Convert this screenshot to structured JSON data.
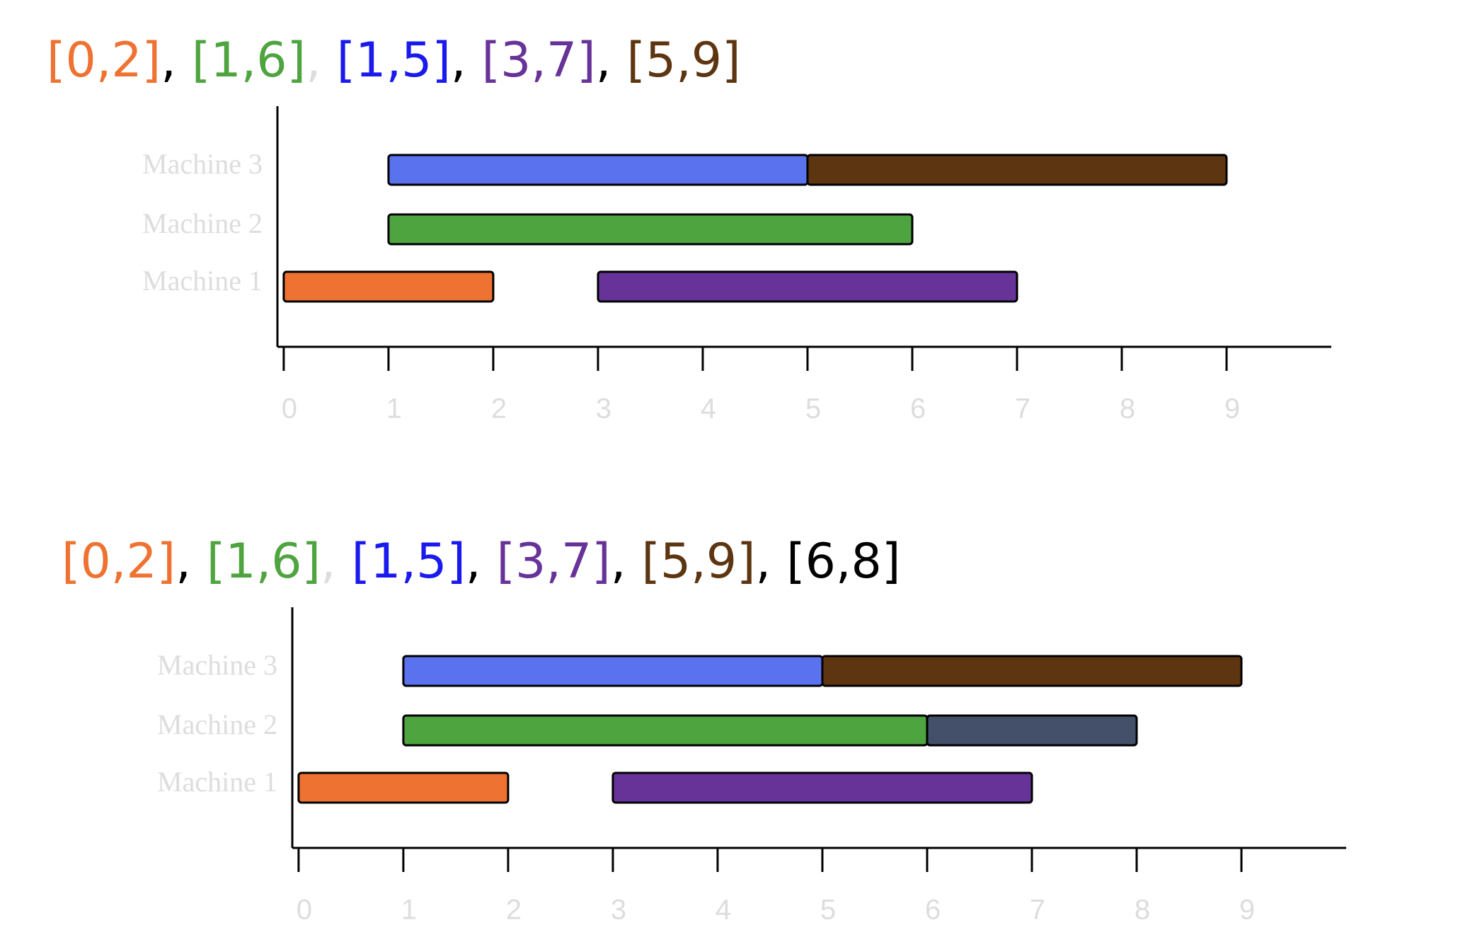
{
  "chart_data": [
    {
      "type": "gantt",
      "title_parts": [
        {
          "text": "[0,2]",
          "color": "#ee7231",
          "comma_color": "#000000"
        },
        {
          "text": "[1,6]",
          "color": "#4ea43f",
          "comma_color": "#dddddd"
        },
        {
          "text": "[1,5]",
          "color": "#1a1aee",
          "comma_color": "#000000"
        },
        {
          "text": "[3,7]",
          "color": "#673399",
          "comma_color": "#000000"
        },
        {
          "text": "[5,9]",
          "color": "#5e3511"
        }
      ],
      "separator": ",",
      "categories": [
        "Machine 1",
        "Machine 2",
        "Machine 3"
      ],
      "tasks": [
        [
          {
            "start": 0,
            "end": 2,
            "color": "#ee7231"
          },
          {
            "start": 3,
            "end": 7,
            "color": "#673399"
          }
        ],
        [
          {
            "start": 1,
            "end": 6,
            "color": "#4ea43f"
          }
        ],
        [
          {
            "start": 1,
            "end": 5,
            "color": "#5b72ef"
          },
          {
            "start": 5,
            "end": 9,
            "color": "#5e3511"
          }
        ]
      ],
      "xlim": [
        -0.06,
        10
      ],
      "xticks": [
        0,
        1,
        2,
        3,
        4,
        5,
        6,
        7,
        8,
        9
      ]
    },
    {
      "type": "gantt",
      "title_parts": [
        {
          "text": "[0,2]",
          "color": "#ee7231",
          "comma_color": "#000000"
        },
        {
          "text": "[1,6]",
          "color": "#4ea43f",
          "comma_color": "#dddddd"
        },
        {
          "text": "[1,5]",
          "color": "#1a1aee",
          "comma_color": "#000000"
        },
        {
          "text": "[3,7]",
          "color": "#673399",
          "comma_color": "#000000"
        },
        {
          "text": "[5,9]",
          "color": "#5e3511",
          "comma_color": "#000000"
        },
        {
          "text": "[6,8]",
          "color": "#000000"
        }
      ],
      "separator": ",",
      "categories": [
        "Machine 1",
        "Machine 2",
        "Machine 3"
      ],
      "tasks": [
        [
          {
            "start": 0,
            "end": 2,
            "color": "#ee7231"
          },
          {
            "start": 3,
            "end": 7,
            "color": "#673399"
          }
        ],
        [
          {
            "start": 1,
            "end": 6,
            "color": "#4ea43f"
          },
          {
            "start": 6,
            "end": 8,
            "color": "#44506a"
          }
        ],
        [
          {
            "start": 1,
            "end": 5,
            "color": "#5b72ef"
          },
          {
            "start": 5,
            "end": 9,
            "color": "#5e3511"
          }
        ]
      ],
      "xlim": [
        -0.06,
        10
      ],
      "xticks": [
        0,
        1,
        2,
        3,
        4,
        5,
        6,
        7,
        8,
        9
      ]
    }
  ]
}
